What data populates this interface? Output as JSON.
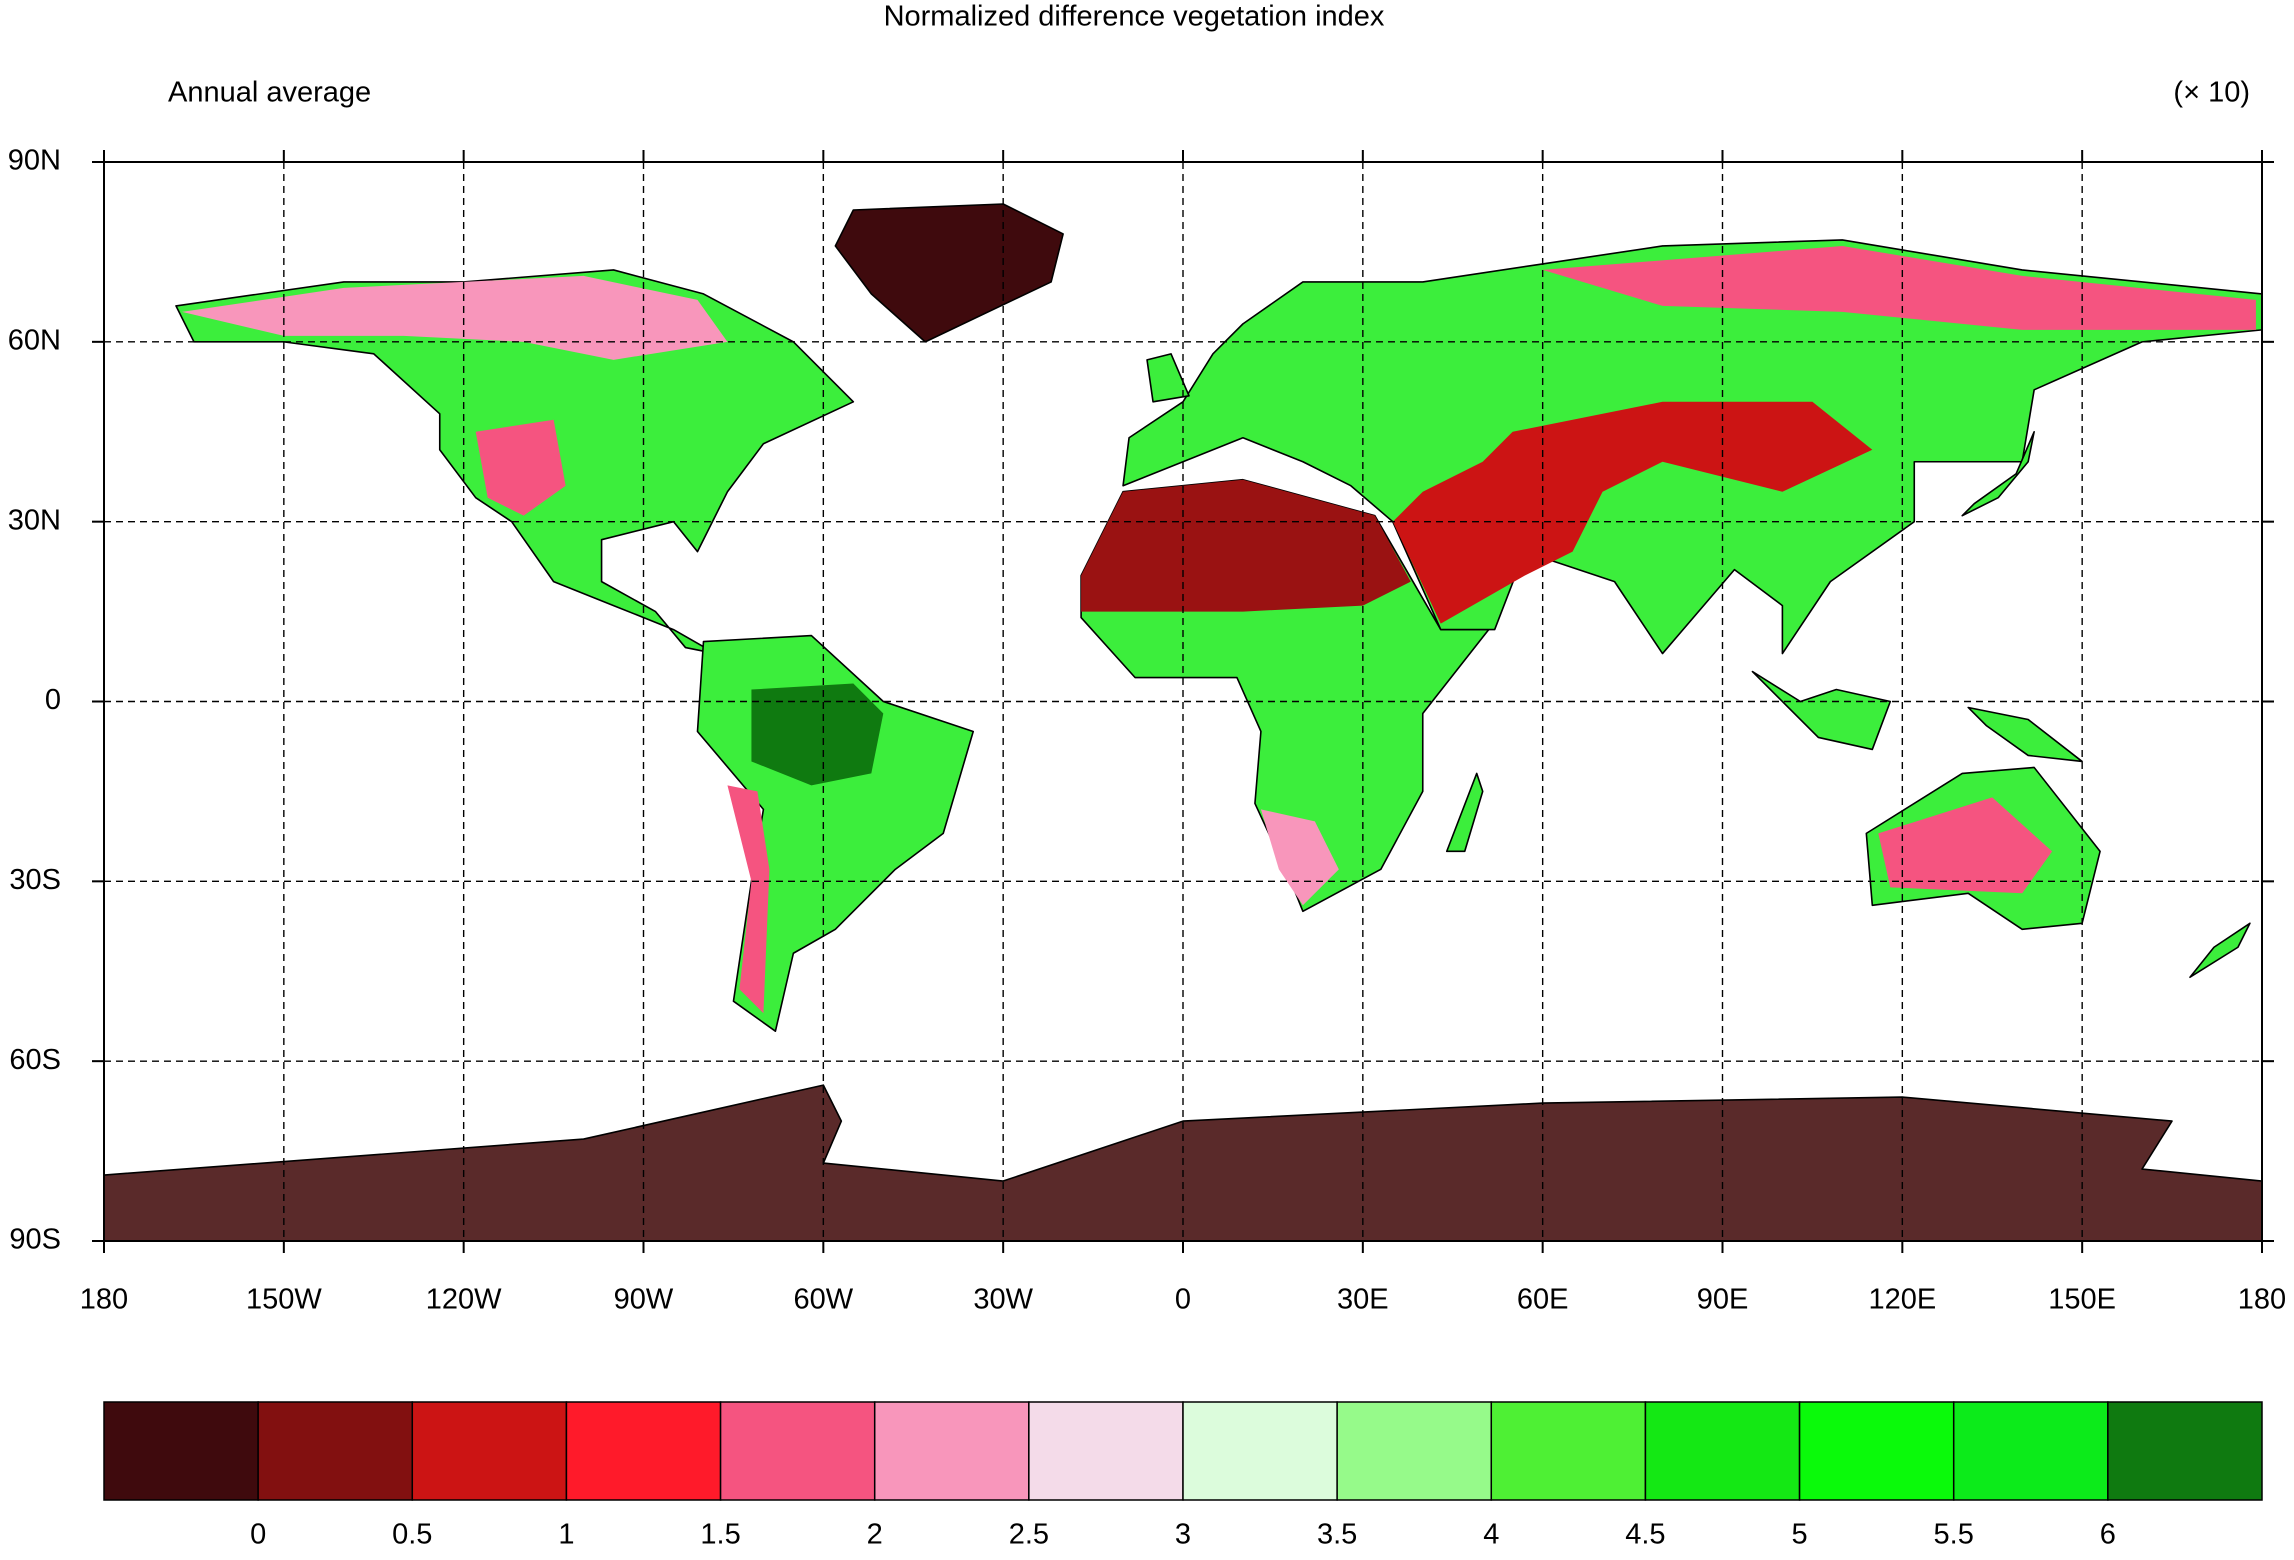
{
  "chart_data": {
    "type": "contour-map",
    "title": "Normalized difference vegetation index",
    "subtitle": "Annual average",
    "units": "(× 10)",
    "xlim": [
      -180,
      180
    ],
    "ylim": [
      -90,
      90
    ],
    "xticks": [
      {
        "value": -180,
        "label": "180"
      },
      {
        "value": -150,
        "label": "150W"
      },
      {
        "value": -120,
        "label": "120W"
      },
      {
        "value": -90,
        "label": "90W"
      },
      {
        "value": -60,
        "label": "60W"
      },
      {
        "value": -30,
        "label": "30W"
      },
      0,
      {
        "value": 30,
        "label": "30E"
      },
      {
        "value": 60,
        "label": "60E"
      },
      {
        "value": 90,
        "label": "90E"
      },
      {
        "value": 120,
        "label": "120E"
      },
      {
        "value": 150,
        "label": "150E"
      },
      180
    ],
    "yticks": [
      {
        "value": 90,
        "label": "90N"
      },
      {
        "value": 60,
        "label": "60N"
      },
      {
        "value": 30,
        "label": "30N"
      },
      0,
      {
        "value": -30,
        "label": "30S"
      },
      {
        "value": -60,
        "label": "60S"
      },
      {
        "value": -90,
        "label": "90S"
      }
    ],
    "grid": true,
    "levels": [
      0,
      0.5,
      1,
      1.5,
      2,
      2.5,
      3,
      3.5,
      4,
      4.5,
      5,
      5.5,
      6
    ],
    "colors": [
      "#3f0a0d",
      "#821010",
      "#cc1414",
      "#ff1a2a",
      "#f55480",
      "#f896bb",
      "#f4dbe9",
      "#dcfcdc",
      "#96fa8a",
      "#4ef034",
      "#14e814",
      "#0afa0a",
      "#0ceb1a",
      "#0f7a10"
    ]
  }
}
